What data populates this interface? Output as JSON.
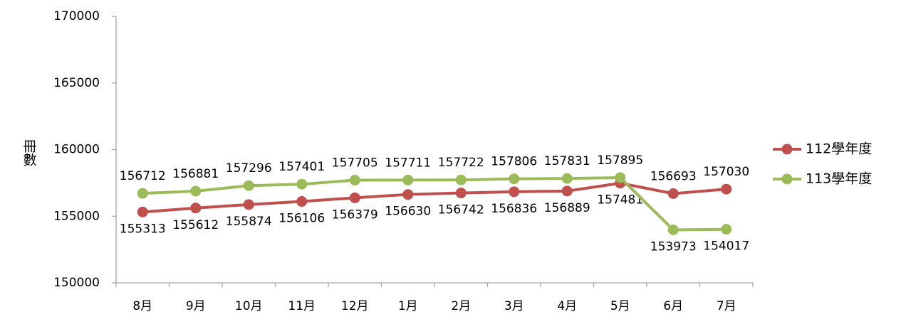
{
  "chart_data": {
    "type": "line",
    "y_label": "冊數",
    "categories": [
      "8月",
      "9月",
      "10月",
      "11月",
      "12月",
      "1月",
      "2月",
      "3月",
      "4月",
      "5月",
      "6月",
      "7月"
    ],
    "series": [
      {
        "name": "112學年度",
        "color": "#c0504d",
        "label_color": "#7b2d2b",
        "values": [
          155313,
          155612,
          155874,
          156106,
          156379,
          156630,
          156742,
          156836,
          156889,
          157481,
          156693,
          157030
        ]
      },
      {
        "name": "113學年度",
        "color": "#9bbb59",
        "label_color": "#4f6228",
        "values": [
          156712,
          156881,
          157296,
          157401,
          157705,
          157711,
          157722,
          157806,
          157831,
          157895,
          153973,
          154017
        ]
      }
    ],
    "ylim": [
      150000,
      170000
    ],
    "yticks": [
      150000,
      155000,
      160000,
      165000,
      170000
    ],
    "grid": false,
    "legend": "right"
  }
}
